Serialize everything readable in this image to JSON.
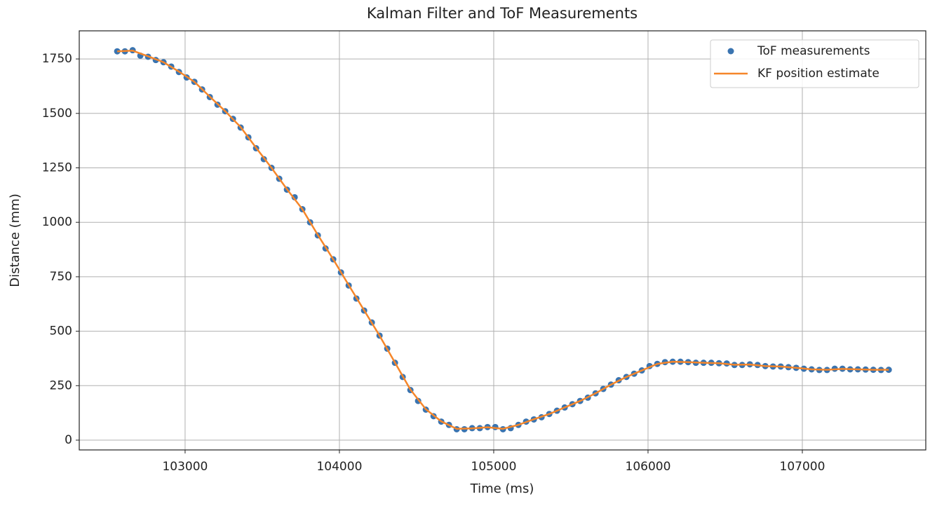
{
  "chart_data": {
    "type": "line",
    "title": "Kalman Filter and ToF Measurements",
    "xlabel": "Time (ms)",
    "ylabel": "Distance (mm)",
    "xlim": [
      102314,
      107800
    ],
    "ylim": [
      -45,
      1879
    ],
    "xticks": [
      103000,
      104000,
      105000,
      106000,
      107000
    ],
    "yticks": [
      0,
      250,
      500,
      750,
      1000,
      1250,
      1500,
      1750
    ],
    "grid": true,
    "legend": "upper right",
    "series": [
      {
        "name": "ToF measurements",
        "type": "scatter",
        "color": "#3a74b0",
        "x": [
          102560,
          102610,
          102660,
          102710,
          102760,
          102810,
          102860,
          102910,
          102960,
          103010,
          103060,
          103110,
          103160,
          103210,
          103260,
          103310,
          103360,
          103410,
          103460,
          103510,
          103560,
          103610,
          103660,
          103710,
          103760,
          103810,
          103860,
          103910,
          103960,
          104010,
          104060,
          104110,
          104160,
          104210,
          104260,
          104310,
          104360,
          104410,
          104460,
          104510,
          104560,
          104610,
          104660,
          104710,
          104760,
          104810,
          104860,
          104910,
          104960,
          105010,
          105060,
          105110,
          105160,
          105210,
          105260,
          105310,
          105360,
          105410,
          105460,
          105510,
          105560,
          105610,
          105660,
          105710,
          105760,
          105810,
          105860,
          105910,
          105960,
          106010,
          106060,
          106110,
          106160,
          106210,
          106260,
          106310,
          106360,
          106410,
          106460,
          106510,
          106560,
          106610,
          106660,
          106710,
          106760,
          106810,
          106860,
          106910,
          106960,
          107010,
          107060,
          107110,
          107160,
          107210,
          107260,
          107310,
          107360,
          107410,
          107460,
          107510,
          107560
        ],
        "values": [
          1785,
          1785,
          1790,
          1765,
          1760,
          1745,
          1735,
          1715,
          1690,
          1665,
          1645,
          1610,
          1575,
          1540,
          1510,
          1475,
          1435,
          1390,
          1340,
          1290,
          1250,
          1200,
          1150,
          1115,
          1060,
          1000,
          940,
          880,
          830,
          770,
          710,
          650,
          595,
          540,
          480,
          420,
          355,
          290,
          230,
          180,
          140,
          110,
          85,
          70,
          50,
          50,
          55,
          55,
          60,
          60,
          50,
          55,
          70,
          85,
          95,
          105,
          120,
          135,
          150,
          165,
          180,
          195,
          215,
          235,
          255,
          275,
          290,
          305,
          320,
          340,
          350,
          358,
          360,
          360,
          358,
          355,
          355,
          355,
          353,
          352,
          345,
          345,
          348,
          345,
          340,
          338,
          338,
          335,
          332,
          328,
          325,
          322,
          322,
          328,
          328,
          325,
          325,
          324,
          323,
          322,
          323
        ]
      },
      {
        "name": "KF position estimate",
        "type": "line",
        "color": "#f5862a",
        "x": [
          102560,
          102660,
          102760,
          102860,
          102960,
          103060,
          103160,
          103260,
          103360,
          103460,
          103560,
          103660,
          103760,
          103860,
          103960,
          104060,
          104160,
          104260,
          104360,
          104460,
          104560,
          104660,
          104760,
          104860,
          104960,
          105060,
          105160,
          105260,
          105360,
          105460,
          105560,
          105660,
          105760,
          105860,
          105960,
          106060,
          106160,
          106260,
          106360,
          106460,
          106560,
          106660,
          106760,
          106860,
          106960,
          107060,
          107160,
          107260,
          107360,
          107460,
          107560
        ],
        "values": [
          1785,
          1788,
          1762,
          1735,
          1692,
          1645,
          1577,
          1510,
          1437,
          1342,
          1250,
          1152,
          1060,
          942,
          830,
          712,
          596,
          480,
          356,
          232,
          142,
          86,
          52,
          54,
          59,
          52,
          70,
          96,
          120,
          150,
          180,
          215,
          255,
          290,
          320,
          350,
          360,
          358,
          355,
          353,
          346,
          347,
          340,
          338,
          332,
          325,
          323,
          327,
          325,
          323,
          323
        ]
      }
    ]
  }
}
